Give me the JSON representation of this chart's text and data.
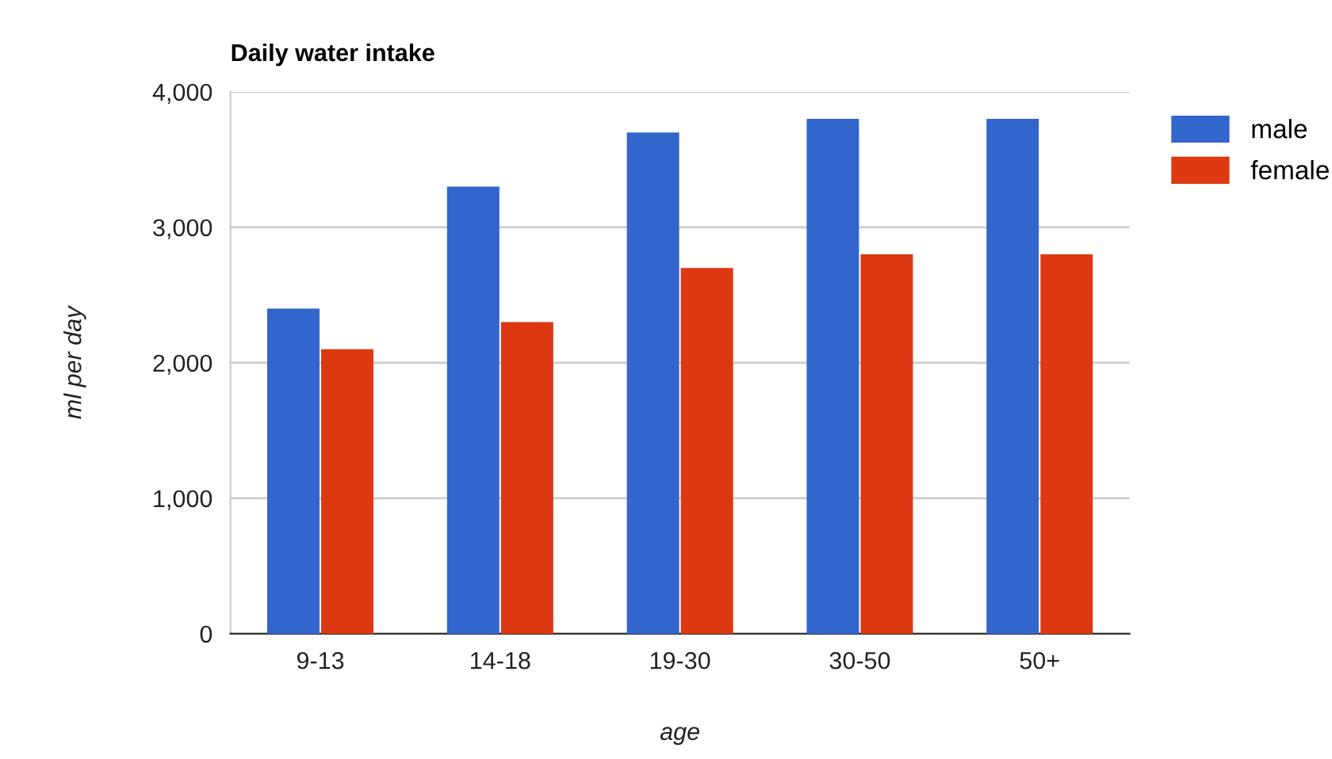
{
  "chart_data": {
    "type": "bar",
    "title": "Daily water intake",
    "xlabel": "age",
    "ylabel": "ml per day",
    "categories": [
      "9-13",
      "14-18",
      "19-30",
      "30-50",
      "50+"
    ],
    "series": [
      {
        "name": "male",
        "color": "#3366cc",
        "values": [
          2400,
          3300,
          3700,
          3800,
          3800
        ]
      },
      {
        "name": "female",
        "color": "#dc3912",
        "values": [
          2100,
          2300,
          2700,
          2800,
          2800
        ]
      }
    ],
    "ylim": [
      0,
      4000
    ],
    "yticks": [
      0,
      {
        "value": 1000,
        "label": "1,000"
      },
      {
        "value": 2000,
        "label": "2,000"
      },
      {
        "value": 3000,
        "label": "3,000"
      },
      {
        "value": 4000,
        "label": "4,000"
      }
    ],
    "grid": "y",
    "legend": "top right"
  }
}
